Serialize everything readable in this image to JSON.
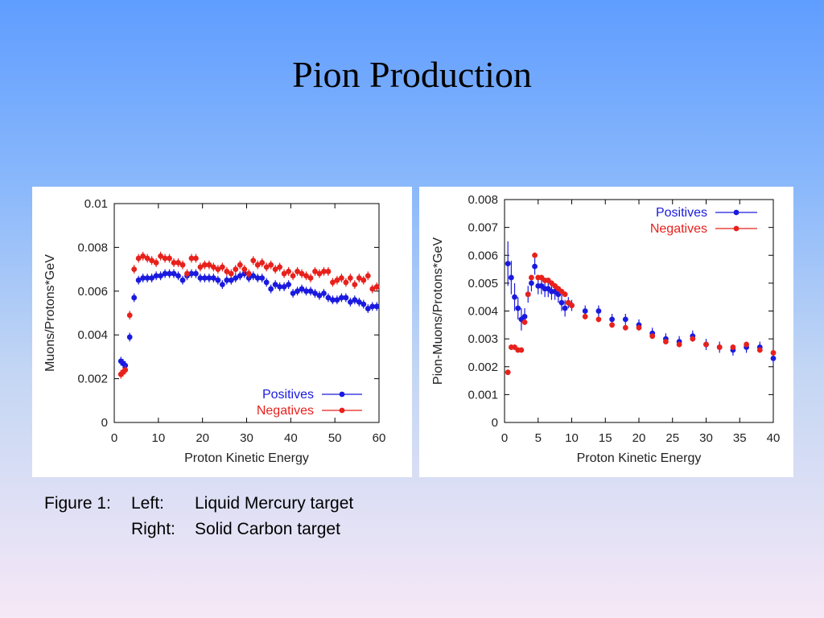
{
  "slide": {
    "title": "Pion Production"
  },
  "caption": {
    "prefix": "Figure 1:",
    "lines": [
      {
        "side": "Left:",
        "text": "Liquid Mercury target"
      },
      {
        "side": "Right:",
        "text": "Solid Carbon target"
      }
    ]
  },
  "colors": {
    "positives": "#1a1adf",
    "negatives": "#e8211c",
    "axis": "#000000"
  },
  "chart_data": [
    {
      "type": "scatter",
      "target": "Liquid Mercury",
      "xlabel": "Proton Kinetic Energy",
      "ylabel": "Muons/Protons*GeV",
      "xlim": [
        0,
        60
      ],
      "ylim": [
        0,
        0.01
      ],
      "xticks": [
        0,
        10,
        20,
        30,
        40,
        50,
        60
      ],
      "yticks": [
        0,
        0.002,
        0.004,
        0.006,
        0.008,
        0.01
      ],
      "ytick_labels": [
        "0",
        "0.002",
        "0.004",
        "0.006",
        "0.008",
        "0.01"
      ],
      "grid": false,
      "legend_position": "bottom-right",
      "error_bars": true,
      "series": [
        {
          "name": "Positives",
          "x": [
            1.5,
            2,
            2.5,
            3.5,
            4.5,
            5.5,
            6.5,
            7.5,
            8.5,
            9.5,
            10.5,
            11.5,
            12.5,
            13.5,
            14.5,
            15.5,
            16.5,
            17.5,
            18.5,
            19.5,
            20.5,
            21.5,
            22.5,
            23.5,
            24.5,
            25.5,
            26.5,
            27.5,
            28.5,
            29.5,
            30.5,
            31.5,
            32.5,
            33.5,
            34.5,
            35.5,
            36.5,
            37.5,
            38.5,
            39.5,
            40.5,
            41.5,
            42.5,
            43.5,
            44.5,
            45.5,
            46.5,
            47.5,
            48.5,
            49.5,
            50.5,
            51.5,
            52.5,
            53.5,
            54.5,
            55.5,
            56.5,
            57.5,
            58.5,
            59.5
          ],
          "y": [
            0.0028,
            0.0027,
            0.0026,
            0.0039,
            0.0057,
            0.0065,
            0.0066,
            0.0066,
            0.0066,
            0.0067,
            0.0067,
            0.0068,
            0.0068,
            0.0068,
            0.0067,
            0.0065,
            0.0067,
            0.0068,
            0.0068,
            0.0066,
            0.0066,
            0.0066,
            0.0066,
            0.0065,
            0.0063,
            0.0065,
            0.0065,
            0.0066,
            0.0067,
            0.0068,
            0.0066,
            0.0067,
            0.0066,
            0.0066,
            0.0064,
            0.0061,
            0.0063,
            0.0062,
            0.0062,
            0.0063,
            0.0059,
            0.006,
            0.0061,
            0.006,
            0.006,
            0.0059,
            0.0058,
            0.0059,
            0.0057,
            0.0056,
            0.0056,
            0.0057,
            0.0057,
            0.0055,
            0.0056,
            0.0055,
            0.0054,
            0.0052,
            0.0053,
            0.0053
          ],
          "yerr": 0.0002
        },
        {
          "name": "Negatives",
          "x": [
            1.5,
            2,
            2.5,
            3.5,
            4.5,
            5.5,
            6.5,
            7.5,
            8.5,
            9.5,
            10.5,
            11.5,
            12.5,
            13.5,
            14.5,
            15.5,
            16.5,
            17.5,
            18.5,
            19.5,
            20.5,
            21.5,
            22.5,
            23.5,
            24.5,
            25.5,
            26.5,
            27.5,
            28.5,
            29.5,
            30.5,
            31.5,
            32.5,
            33.5,
            34.5,
            35.5,
            36.5,
            37.5,
            38.5,
            39.5,
            40.5,
            41.5,
            42.5,
            43.5,
            44.5,
            45.5,
            46.5,
            47.5,
            48.5,
            49.5,
            50.5,
            51.5,
            52.5,
            53.5,
            54.5,
            55.5,
            56.5,
            57.5,
            58.5,
            59.5
          ],
          "y": [
            0.0022,
            0.0023,
            0.0024,
            0.0049,
            0.007,
            0.0075,
            0.0076,
            0.0075,
            0.0074,
            0.0073,
            0.0076,
            0.0075,
            0.0075,
            0.0073,
            0.0073,
            0.0072,
            0.0068,
            0.0075,
            0.0075,
            0.0071,
            0.0072,
            0.0072,
            0.0071,
            0.007,
            0.0071,
            0.0069,
            0.0068,
            0.007,
            0.0072,
            0.007,
            0.0068,
            0.0074,
            0.0072,
            0.0073,
            0.0071,
            0.0072,
            0.007,
            0.0071,
            0.0068,
            0.0069,
            0.0067,
            0.0069,
            0.0068,
            0.0067,
            0.0066,
            0.0069,
            0.0068,
            0.0069,
            0.0069,
            0.0064,
            0.0065,
            0.0066,
            0.0064,
            0.0066,
            0.0063,
            0.0066,
            0.0065,
            0.0067,
            0.0061,
            0.0062
          ],
          "yerr": 0.0002
        }
      ]
    },
    {
      "type": "scatter",
      "target": "Solid Carbon",
      "xlabel": "Proton Kinetic Energy",
      "ylabel": "Pion-Muons/Protons*GeV",
      "xlim": [
        0,
        40
      ],
      "ylim": [
        0,
        0.008
      ],
      "xticks": [
        0,
        5,
        10,
        15,
        20,
        25,
        30,
        35,
        40
      ],
      "yticks": [
        0,
        0.001,
        0.002,
        0.003,
        0.004,
        0.005,
        0.006,
        0.007,
        0.008
      ],
      "ytick_labels": [
        "0",
        "0.001",
        "0.002",
        "0.003",
        "0.004",
        "0.005",
        "0.006",
        "0.007",
        "0.008"
      ],
      "grid": false,
      "legend_position": "top-right",
      "error_bars": true,
      "series": [
        {
          "name": "Positives",
          "x": [
            0.5,
            1,
            1.5,
            2,
            2.5,
            3,
            3.5,
            4,
            4.5,
            5,
            5.5,
            6,
            6.5,
            7,
            7.5,
            8,
            8.5,
            9,
            9.5,
            10,
            12,
            14,
            16,
            18,
            20,
            22,
            24,
            26,
            28,
            30,
            32,
            34,
            36,
            38,
            40
          ],
          "y": [
            0.0057,
            0.0052,
            0.0045,
            0.0041,
            0.0037,
            0.0038,
            0.0046,
            0.005,
            0.0056,
            0.0049,
            0.0049,
            0.0048,
            0.0048,
            0.0047,
            0.0047,
            0.0046,
            0.0043,
            0.0041,
            0.0043,
            0.0042,
            0.004,
            0.004,
            0.0037,
            0.0037,
            0.0035,
            0.0032,
            0.003,
            0.0029,
            0.0031,
            0.0028,
            0.0027,
            0.0026,
            0.0027,
            0.0027,
            0.0023
          ],
          "yerr": [
            0.0008,
            0.0006,
            0.0005,
            0.0004,
            0.0004,
            0.0003,
            0.0003,
            0.0003,
            0.0003,
            0.0003,
            0.0003,
            0.0003,
            0.0003,
            0.0003,
            0.0003,
            0.0003,
            0.0003,
            0.0003,
            0.0002,
            0.0002,
            0.0002,
            0.0002,
            0.0002,
            0.0002,
            0.0002,
            0.0002,
            0.0002,
            0.0002,
            0.0002,
            0.0002,
            0.0002,
            0.0002,
            0.0002,
            0.0002,
            0.0002
          ]
        },
        {
          "name": "Negatives",
          "x": [
            0.5,
            1,
            1.5,
            2,
            2.5,
            3,
            3.5,
            4,
            4.5,
            5,
            5.5,
            6,
            6.5,
            7,
            7.5,
            8,
            8.5,
            9,
            9.5,
            10,
            12,
            14,
            16,
            18,
            20,
            22,
            24,
            26,
            28,
            30,
            32,
            34,
            36,
            38,
            40
          ],
          "y": [
            0.0018,
            0.0027,
            0.0027,
            0.0026,
            0.0026,
            0.0036,
            0.0046,
            0.0052,
            0.006,
            0.0052,
            0.0052,
            0.0051,
            0.0051,
            0.005,
            0.0049,
            0.0048,
            0.0047,
            0.0046,
            0.0043,
            0.0042,
            0.0038,
            0.0037,
            0.0035,
            0.0034,
            0.0034,
            0.0031,
            0.0029,
            0.0028,
            0.003,
            0.0028,
            0.0027,
            0.0027,
            0.0028,
            0.0026,
            0.0025
          ],
          "yerr": 0.0001
        }
      ]
    }
  ]
}
